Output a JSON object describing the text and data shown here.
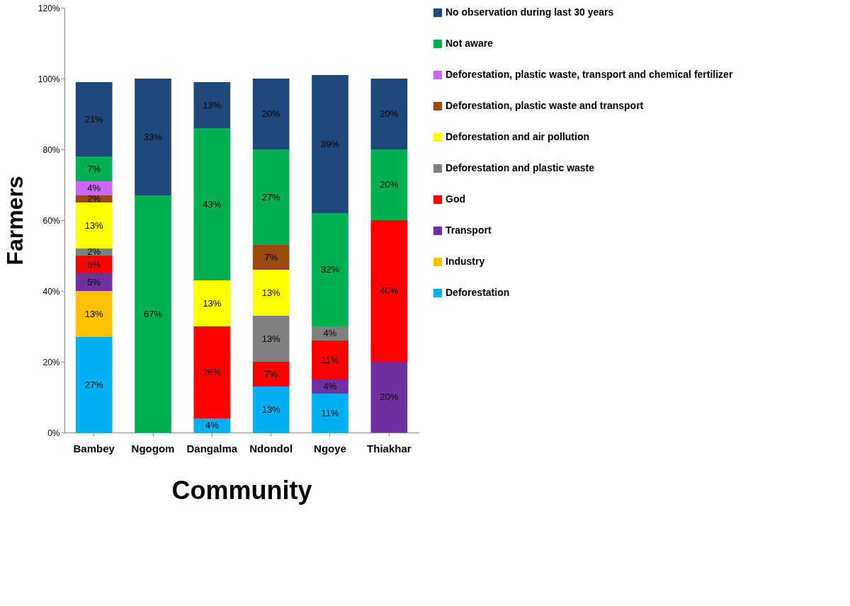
{
  "chart_data": {
    "type": "bar",
    "stacked": true,
    "xlabel": "Community",
    "ylabel": "Farmers",
    "categories": [
      "Bambey",
      "Ngogom",
      "Dangalma",
      "Ndondol",
      "Ngoye",
      "Thiakhar"
    ],
    "ylim": [
      0,
      120
    ],
    "yticks": [
      {
        "value": 0,
        "label": "0%"
      },
      {
        "value": 20,
        "label": "20%"
      },
      {
        "value": 40,
        "label": "40%"
      },
      {
        "value": 60,
        "label": "60%"
      },
      {
        "value": 80,
        "label": "80%"
      },
      {
        "value": 100,
        "label": "100%"
      },
      {
        "value": 120,
        "label": "120%"
      }
    ],
    "grid": false,
    "legend": "right",
    "series": [
      {
        "name": "Deforestation",
        "color": "#00b0f0",
        "values": [
          27,
          null,
          4,
          13,
          11,
          null
        ],
        "value_labels": [
          "27%",
          null,
          "4%",
          "13%",
          "11%",
          null
        ]
      },
      {
        "name": "Industry",
        "color": "#ffc000",
        "values": [
          13,
          null,
          null,
          null,
          null,
          null
        ],
        "value_labels": [
          "13%",
          null,
          null,
          null,
          null,
          null
        ]
      },
      {
        "name": "Transport",
        "color": "#7030a0",
        "values": [
          5,
          null,
          null,
          null,
          4,
          20
        ],
        "value_labels": [
          "5%",
          null,
          null,
          null,
          "4%",
          "20%"
        ]
      },
      {
        "name": "God",
        "color": "#ff0000",
        "values": [
          5,
          null,
          26,
          7,
          11,
          40
        ],
        "value_labels": [
          "5%",
          null,
          "26%",
          "7%",
          "11%",
          "40%"
        ]
      },
      {
        "name": "Deforestation and plastic waste",
        "color": "#808080",
        "values": [
          2,
          null,
          null,
          13,
          4,
          null
        ],
        "value_labels": [
          "2%",
          null,
          null,
          "13%",
          "4%",
          null
        ]
      },
      {
        "name": "Deforestation and air pollution",
        "color": "#ffff00",
        "values": [
          13,
          null,
          13,
          13,
          null,
          null
        ],
        "value_labels": [
          "13%",
          null,
          "13%",
          "13%",
          null,
          null
        ]
      },
      {
        "name": "Deforestation, plastic waste and transport",
        "color": "#9c4a0c",
        "values": [
          2,
          null,
          null,
          7,
          null,
          null
        ],
        "value_labels": [
          "2%",
          null,
          null,
          "7%",
          null,
          null
        ]
      },
      {
        "name": "Deforestation, plastic waste, transport and chemical fertilizer",
        "color": "#cc66ff",
        "values": [
          4,
          null,
          null,
          null,
          null,
          null
        ],
        "value_labels": [
          "4%",
          null,
          null,
          null,
          null,
          null
        ]
      },
      {
        "name": "Not aware",
        "color": "#00b050",
        "values": [
          7,
          67,
          43,
          27,
          32,
          20
        ],
        "value_labels": [
          "7%",
          "67%",
          "43%",
          "27%",
          "32%",
          "20%"
        ]
      },
      {
        "name": "No observation during last 30 years",
        "color": "#1f497d",
        "values": [
          21,
          33,
          13,
          20,
          39,
          20
        ],
        "value_labels": [
          "21%",
          "33%",
          "13%",
          "20%",
          "39%",
          "20%"
        ]
      }
    ]
  }
}
